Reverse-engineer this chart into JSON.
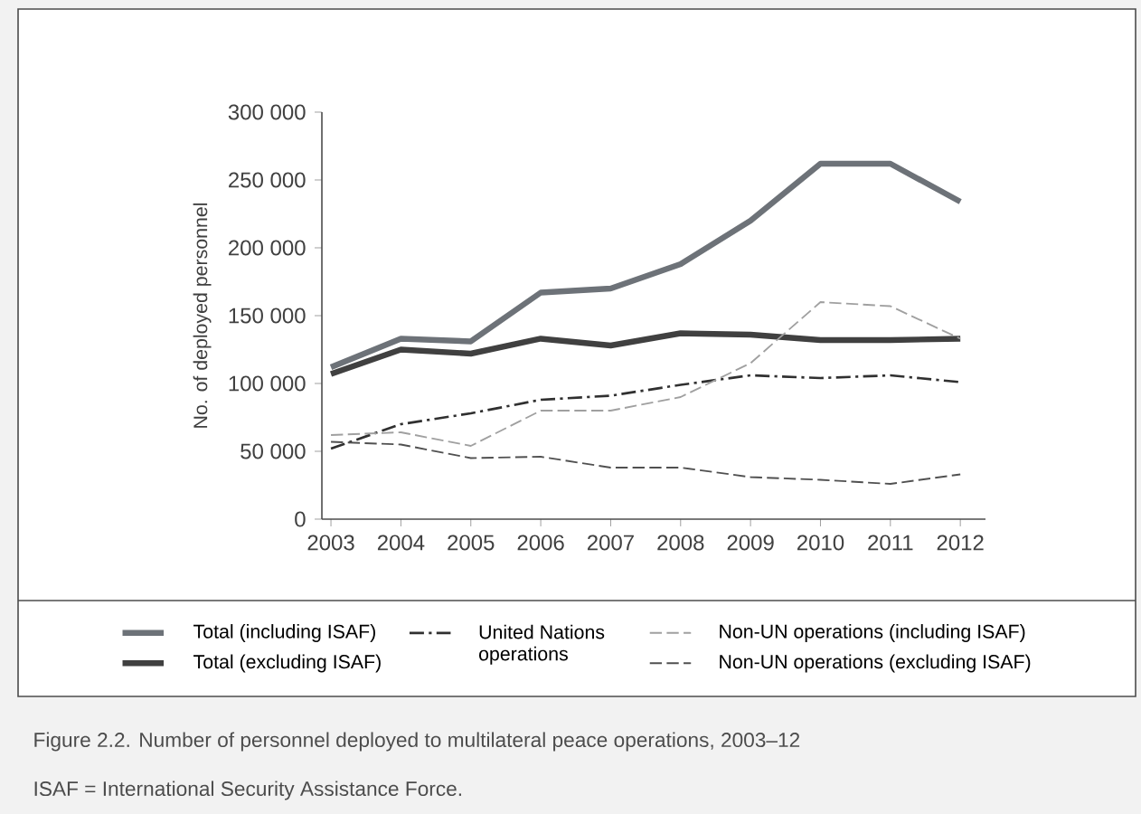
{
  "chart_data": {
    "type": "line",
    "ylabel": "No. of deployed personnel",
    "x": [
      2003,
      2004,
      2005,
      2006,
      2007,
      2008,
      2009,
      2010,
      2011,
      2012
    ],
    "xlim": [
      2002.87,
      2012.36
    ],
    "xticks": [
      2003,
      2004,
      2005,
      2006,
      2007,
      2008,
      2009,
      2010,
      2011,
      2012
    ],
    "ylim": [
      0,
      300000
    ],
    "yticks": [
      {
        "value": 0,
        "label": "0"
      },
      {
        "value": 50000,
        "label": "50 000"
      },
      {
        "value": 100000,
        "label": "100 000"
      },
      {
        "value": 150000,
        "label": "150 000"
      },
      {
        "value": 200000,
        "label": "200 000"
      },
      {
        "value": 250000,
        "label": "250 000"
      },
      {
        "value": 300000,
        "label": "300 000"
      }
    ],
    "grid": false,
    "legend": "bottom",
    "marker": "none",
    "series": [
      {
        "name": "Total (including ISAF)",
        "color": "#6d7278",
        "line_style": "solid",
        "values": [
          112000,
          133000,
          131000,
          167000,
          170000,
          188000,
          220000,
          262000,
          262000,
          234000
        ]
      },
      {
        "name": "Total (excluding ISAF)",
        "color": "#404040",
        "line_style": "solid",
        "values": [
          107000,
          125000,
          122000,
          133000,
          128000,
          137000,
          136000,
          132000,
          132000,
          133000
        ]
      },
      {
        "name": "United Nations operations",
        "color": "#303030",
        "line_style": "dashdot",
        "values": [
          52000,
          70000,
          78000,
          88000,
          91000,
          99000,
          106000,
          104000,
          106000,
          101000
        ]
      },
      {
        "name": "Non-UN operations (including ISAF)",
        "color": "#a0a0a0",
        "line_style": "dashed",
        "values": [
          62000,
          64000,
          54000,
          80000,
          80000,
          90000,
          115000,
          160000,
          157000,
          133000
        ]
      },
      {
        "name": "Non-UN operations (excluding ISAF)",
        "color": "#505050",
        "line_style": "dashed",
        "values": [
          57000,
          55000,
          45000,
          46000,
          38000,
          38000,
          31000,
          29000,
          26000,
          33000
        ]
      }
    ],
    "annotations": [
      "Figure 2.2. Number of personnel deployed to multilateral peace operations, 2003–12",
      "ISAF = International Security Assistance Force."
    ]
  }
}
